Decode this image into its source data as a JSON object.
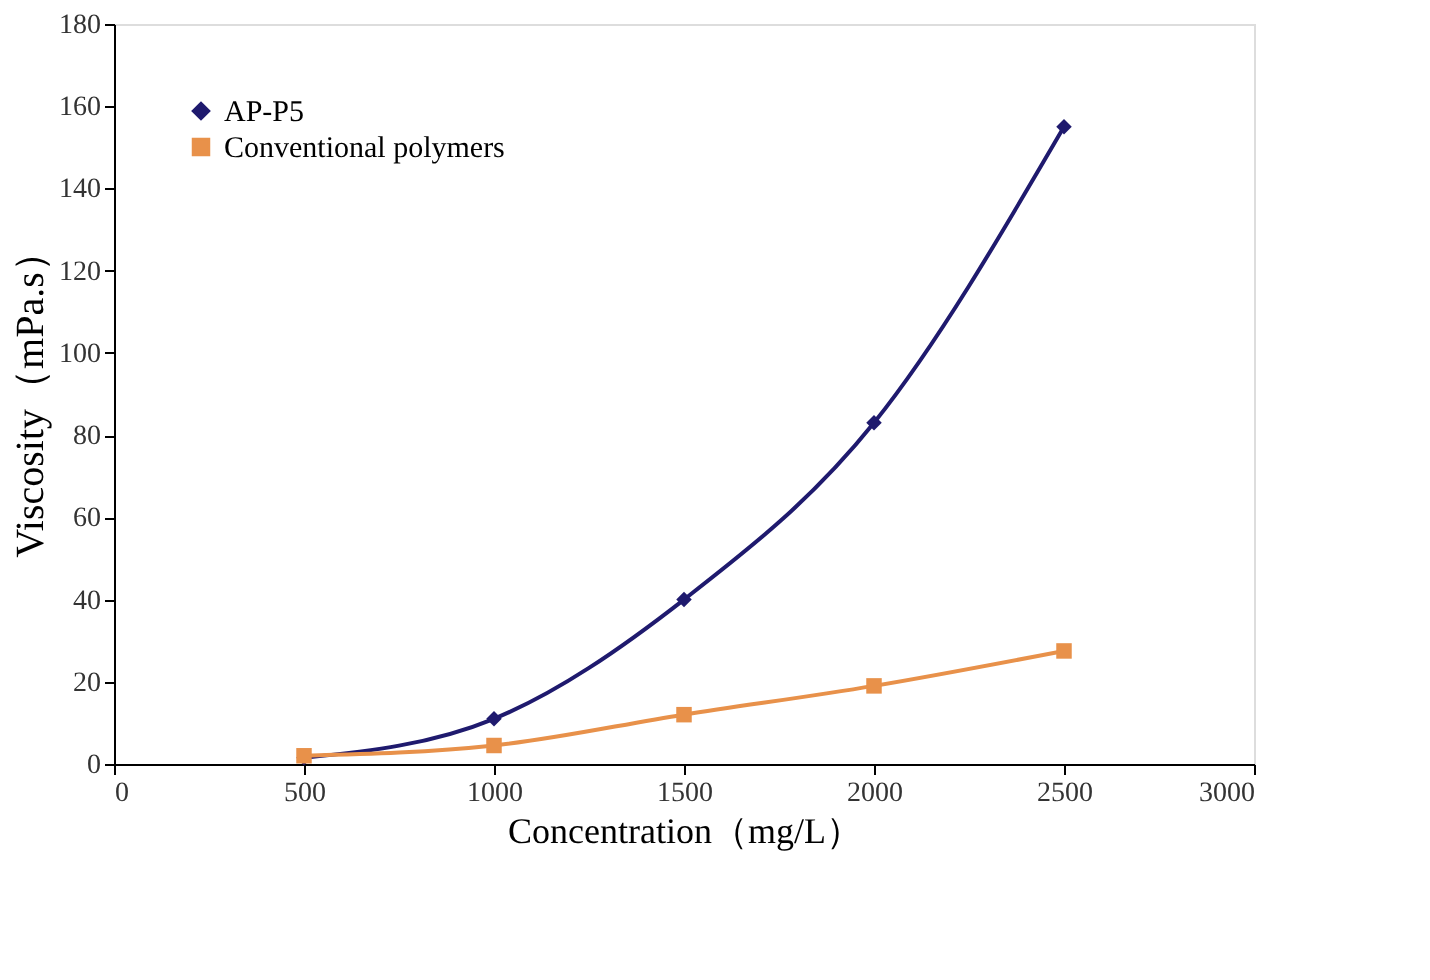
{
  "chart_data": {
    "type": "line",
    "xlabel": "Concentration（mg/L）",
    "ylabel": "Viscosity（mPa.s）",
    "x": [
      500,
      1000,
      1500,
      2000,
      2500
    ],
    "series": [
      {
        "name": "AP-P5",
        "color": "#1f1a6e",
        "marker": "diamond",
        "values": [
          1.5,
          11,
          40,
          83,
          155
        ]
      },
      {
        "name": "Conventional polymers",
        "color": "#e8914a",
        "marker": "square",
        "values": [
          2,
          4.5,
          12,
          19,
          27.5
        ]
      }
    ],
    "xlim": [
      0,
      3000
    ],
    "xticks": [
      0,
      500,
      1000,
      1500,
      2000,
      2500,
      3000
    ],
    "ylim": [
      0,
      180
    ],
    "yticks": [
      0,
      20,
      40,
      60,
      80,
      100,
      120,
      140,
      160,
      180
    ],
    "grid": false,
    "legend": "top left",
    "line_style": "solid"
  }
}
